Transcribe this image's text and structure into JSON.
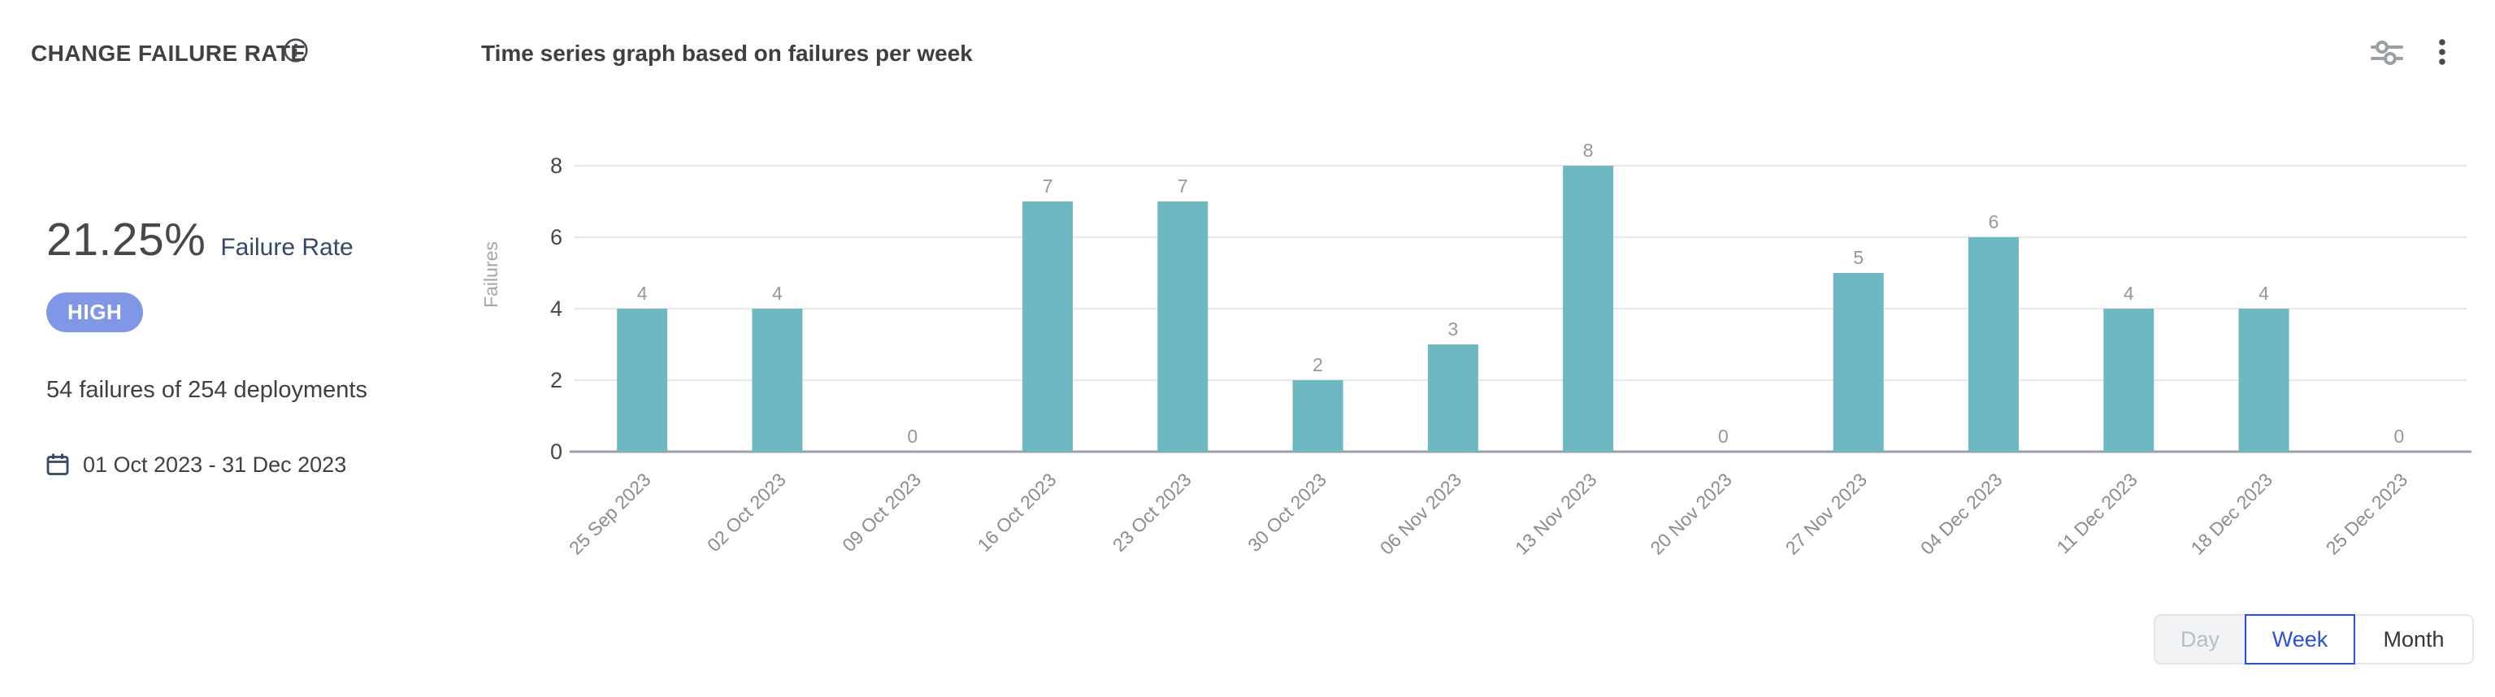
{
  "header": {
    "title": "CHANGE FAILURE RATE",
    "chart_title": "Time series graph based on failures per week"
  },
  "icons": {
    "info": "info-icon",
    "settings": "sliders-icon",
    "more_menu": "kebab-menu-icon",
    "calendar": "calendar-icon"
  },
  "stats": {
    "rate_value": "21.25%",
    "rate_label": "Failure Rate",
    "severity_badge": "HIGH",
    "summary": "54 failures of 254 deployments",
    "date_range": "01 Oct 2023 - 31 Dec 2023"
  },
  "chart_data": {
    "type": "bar",
    "title": "Time series graph based on failures per week",
    "categories": [
      "25 Sep 2023",
      "02 Oct 2023",
      "09 Oct 2023",
      "16 Oct 2023",
      "23 Oct 2023",
      "30 Oct 2023",
      "06 Nov 2023",
      "13 Nov 2023",
      "20 Nov 2023",
      "27 Nov 2023",
      "04 Dec 2023",
      "11 Dec 2023",
      "18 Dec 2023",
      "25 Dec 2023"
    ],
    "values": [
      4,
      4,
      0,
      7,
      7,
      2,
      3,
      8,
      0,
      5,
      6,
      4,
      4,
      0
    ],
    "xlabel": "",
    "ylabel": "Failures",
    "ylim": [
      0,
      8
    ],
    "yticks": [
      0,
      2,
      4,
      6,
      8
    ],
    "grid": true,
    "legend": false,
    "bar_color": "#6EB8C2",
    "value_labels": true,
    "x_tick_rotation": -45
  },
  "granularity": {
    "options": [
      {
        "label": "Day",
        "state": "disabled"
      },
      {
        "label": "Week",
        "state": "selected"
      },
      {
        "label": "Month",
        "state": "default"
      }
    ]
  },
  "colors": {
    "bar": "#6EB8C2",
    "badge_high": "#8097E8",
    "toggle_selected": "#2B4FE2",
    "navy_text": "#35466B",
    "gridline": "#E8E8E8",
    "axis_line": "#98A0AC"
  }
}
